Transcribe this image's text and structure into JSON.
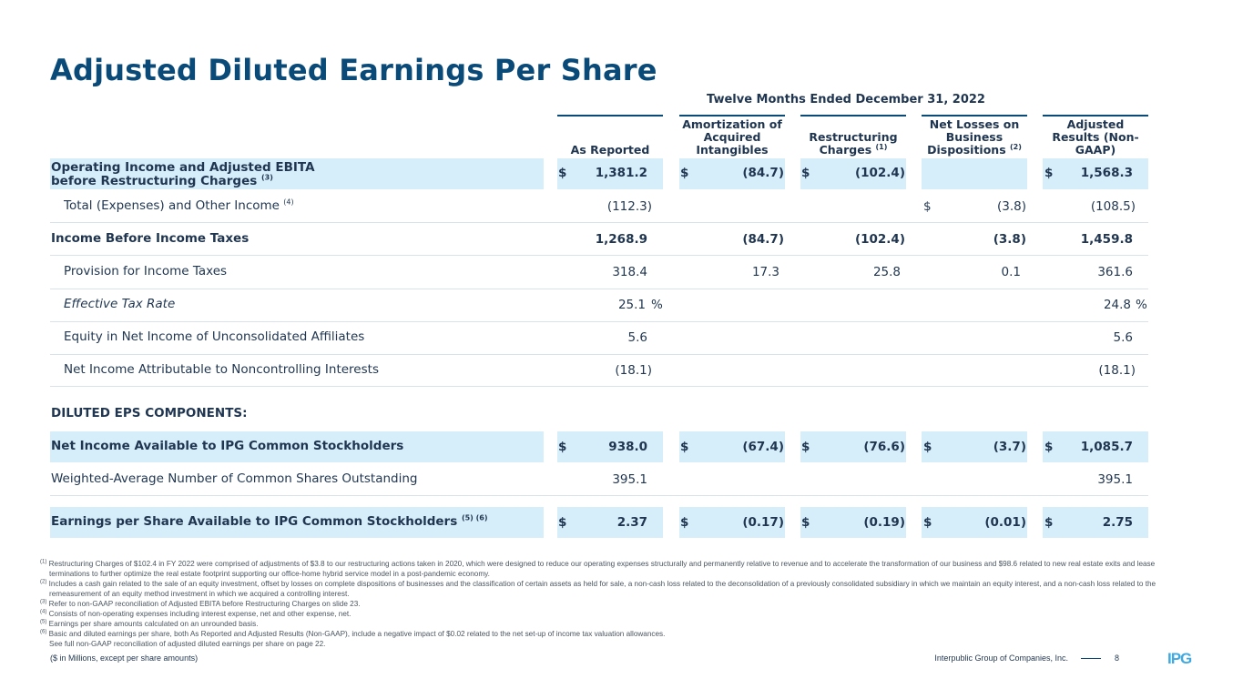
{
  "title": "Adjusted Diluted Earnings Per Share",
  "period": "Twelve Months Ended December 31, 2022",
  "columns": {
    "c1": "As Reported",
    "c2": "Amortization of Acquired Intangibles",
    "c3": "Restructuring Charges",
    "c3_sup": "(1)",
    "c4": "Net Losses on Business Dispositions",
    "c4_sup": "(2)",
    "c5": "Adjusted Results (Non-GAAP)"
  },
  "rows": {
    "op_income": {
      "label": "Operating Income and Adjusted EBITA before Restructuring Charges",
      "sup": "(3)",
      "c1": "1,381.2",
      "c2": "(84.7)",
      "c3": "(102.4)",
      "c5": "1,568.3"
    },
    "total_exp": {
      "label": "Total (Expenses) and Other Income",
      "sup": "(4)",
      "c1": "(112.3)",
      "c4": "(3.8)",
      "c5": "(108.5)"
    },
    "pretax": {
      "label": "Income Before Income Taxes",
      "c1": "1,268.9",
      "c2": "(84.7)",
      "c3": "(102.4)",
      "c4": "(3.8)",
      "c5": "1,459.8"
    },
    "provision": {
      "label": "Provision for Income Taxes",
      "c1": "318.4",
      "c2": "17.3",
      "c3": "25.8",
      "c4": "0.1",
      "c5": "361.6"
    },
    "etr": {
      "label": "Effective Tax Rate",
      "c1": "25.1",
      "c5": "24.8",
      "unit": "%"
    },
    "equity": {
      "label": "Equity in Net Income of Unconsolidated Affiliates",
      "c1": "5.6",
      "c5": "5.6"
    },
    "nci": {
      "label": "Net Income Attributable to Noncontrolling Interests",
      "c1": "(18.1)",
      "c5": "(18.1)"
    },
    "section": {
      "label": "DILUTED EPS COMPONENTS:"
    },
    "net_income": {
      "label": "Net Income Available to IPG Common Stockholders",
      "c1": "938.0",
      "c2": "(67.4)",
      "c3": "(76.6)",
      "c4": "(3.7)",
      "c5": "1,085.7"
    },
    "shares": {
      "label": "Weighted-Average Number of Common Shares Outstanding",
      "c1": "395.1",
      "c5": "395.1"
    },
    "eps": {
      "label": "Earnings per Share Available to IPG Common Stockholders",
      "sup": "(5) (6)",
      "c1": "2.37",
      "c2": "(0.17)",
      "c3": "(0.19)",
      "c4": "(0.01)",
      "c5": "2.75"
    }
  },
  "currency": "$",
  "footnotes": [
    {
      "n": "(1)",
      "text": "Restructuring Charges of $102.4 in FY 2022 were comprised of adjustments of $3.8 to our restructuring actions taken in 2020, which were designed to reduce our operating expenses structurally and permanently relative to revenue and to accelerate the transformation of our business and $98.6 related to new real estate exits and lease terminations to further optimize the real estate footprint supporting our office-home hybrid service model in a post-pandemic economy."
    },
    {
      "n": "(2)",
      "text": "Includes a cash gain related to the sale of an equity investment, offset by losses on complete dispositions of businesses and the classification of certain assets as held for sale, a non-cash loss related to the deconsolidation of a previously consolidated subsidiary in which we maintain an equity interest, and a non-cash loss related to the remeasurement of an equity method investment in which we acquired a controlling interest."
    },
    {
      "n": "(3)",
      "text": "Refer to non-GAAP reconciliation of Adjusted EBITA before Restructuring Charges on slide 23."
    },
    {
      "n": "(4)",
      "text": "Consists of non-operating expenses including interest expense, net and other expense, net."
    },
    {
      "n": "(5)",
      "text": "Earnings per share amounts calculated on an unrounded basis."
    },
    {
      "n": "(6)",
      "text": "Basic and diluted earnings per share, both As Reported and Adjusted Results (Non-GAAP), include a negative impact of $0.02 related to the net set-up of income tax valuation allowances."
    },
    {
      "n": "",
      "text": "See full non-GAAP reconciliation of adjusted diluted earnings per share on page 22."
    }
  ],
  "footer": {
    "units": "($ in Millions, except per share amounts)",
    "company": "Interpublic Group of Companies, Inc.",
    "page": "8",
    "logo_text": "IPG"
  },
  "colors": {
    "accent": "#0a4a78",
    "highlight": "#d6eefa",
    "logo": "#3fa9e0"
  }
}
